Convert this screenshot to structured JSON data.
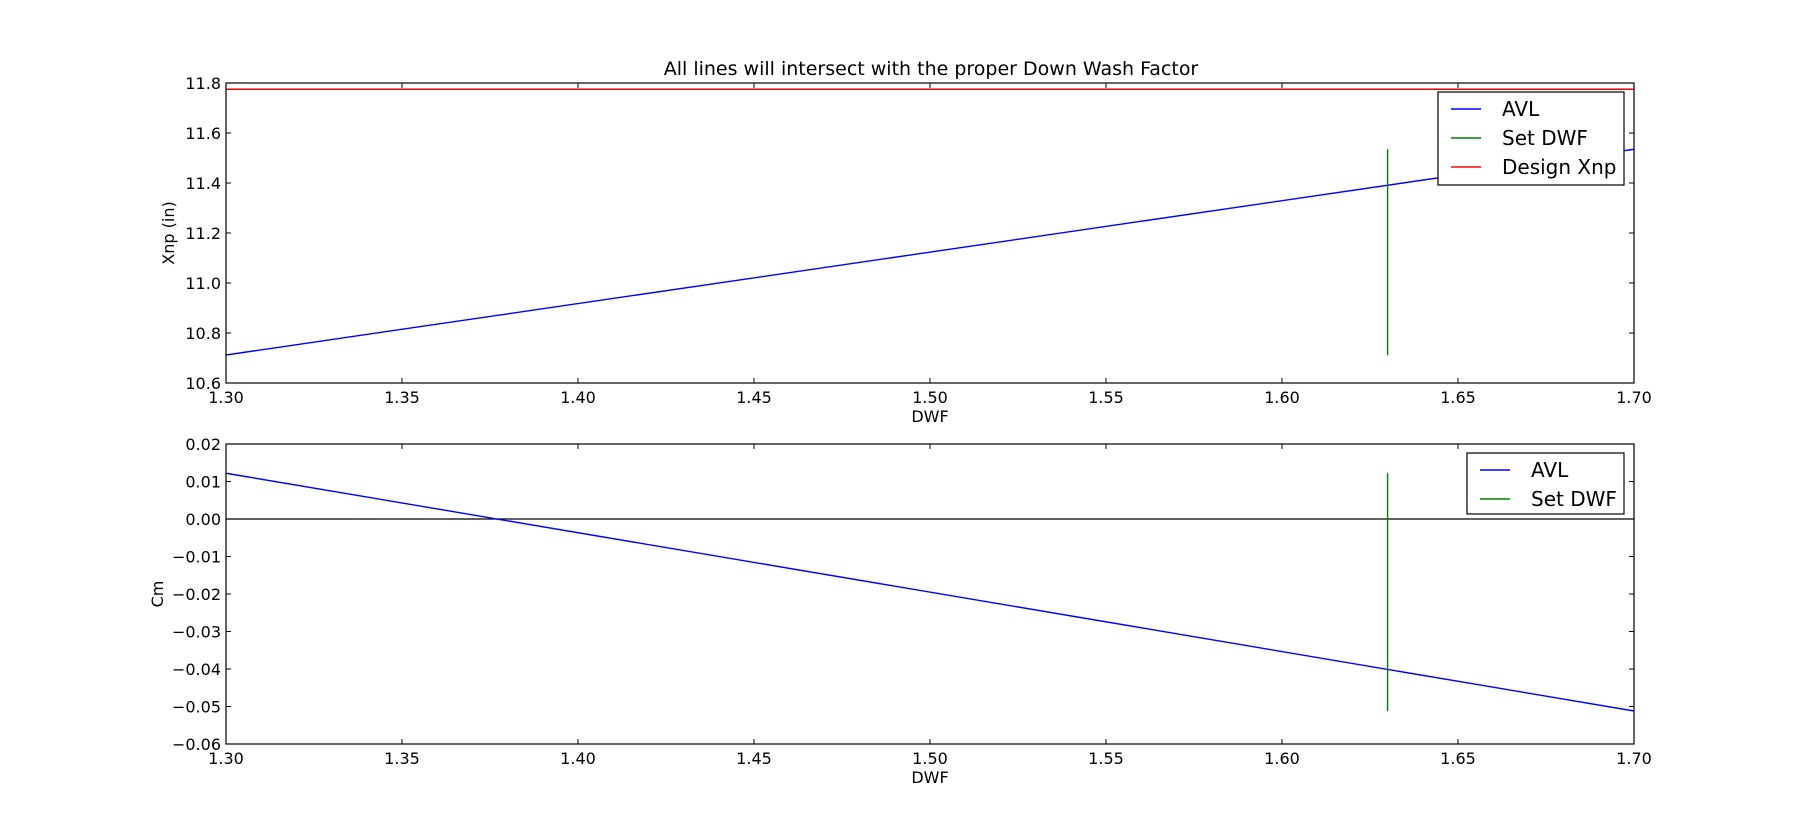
{
  "chart_data": [
    {
      "type": "line",
      "title": "All lines will intersect with the proper Down Wash Factor",
      "xlabel": "DWF",
      "ylabel": "Xnp (in)",
      "xlim": [
        1.3,
        1.7
      ],
      "ylim": [
        10.6,
        11.8
      ],
      "xticks": [
        1.3,
        1.35,
        1.4,
        1.45,
        1.5,
        1.55,
        1.6,
        1.65,
        1.7
      ],
      "xtick_labels": [
        "1.30",
        "1.35",
        "1.40",
        "1.45",
        "1.50",
        "1.55",
        "1.60",
        "1.65",
        "1.70"
      ],
      "yticks": [
        10.6,
        10.8,
        11.0,
        11.2,
        11.4,
        11.6,
        11.8
      ],
      "ytick_labels": [
        "10.6",
        "10.8",
        "11.0",
        "11.2",
        "11.4",
        "11.6",
        "11.8"
      ],
      "grid": false,
      "legend_position": "top-right",
      "series": [
        {
          "name": "AVL",
          "color": "#0000ff",
          "x": [
            1.3,
            1.7
          ],
          "y": [
            10.712,
            11.535
          ]
        },
        {
          "name": "Set DWF",
          "color": "#008000",
          "x": [
            1.63,
            1.63
          ],
          "y": [
            10.712,
            11.535
          ]
        },
        {
          "name": "Design Xnp",
          "color": "#ff0000",
          "x": [
            1.3,
            1.7
          ],
          "y": [
            11.775,
            11.775
          ]
        }
      ]
    },
    {
      "type": "line",
      "title": "",
      "xlabel": "DWF",
      "ylabel": "Cm",
      "xlim": [
        1.3,
        1.7
      ],
      "ylim": [
        -0.06,
        0.02
      ],
      "xticks": [
        1.3,
        1.35,
        1.4,
        1.45,
        1.5,
        1.55,
        1.6,
        1.65,
        1.7
      ],
      "xtick_labels": [
        "1.30",
        "1.35",
        "1.40",
        "1.45",
        "1.50",
        "1.55",
        "1.60",
        "1.65",
        "1.70"
      ],
      "yticks": [
        -0.06,
        -0.05,
        -0.04,
        -0.03,
        -0.02,
        -0.01,
        0.0,
        0.01,
        0.02
      ],
      "ytick_labels": [
        "−0.06",
        "−0.05",
        "−0.04",
        "−0.03",
        "−0.02",
        "−0.01",
        "0.00",
        "0.01",
        "0.02"
      ],
      "grid": false,
      "legend_position": "top-right",
      "hline": {
        "y": 0.0,
        "color": "#000000"
      },
      "series": [
        {
          "name": "AVL",
          "color": "#0000ff",
          "x": [
            1.3,
            1.7
          ],
          "y": [
            0.0122,
            -0.0512
          ]
        },
        {
          "name": "Set DWF",
          "color": "#008000",
          "x": [
            1.63,
            1.63
          ],
          "y": [
            -0.0512,
            0.0122
          ]
        }
      ]
    }
  ]
}
